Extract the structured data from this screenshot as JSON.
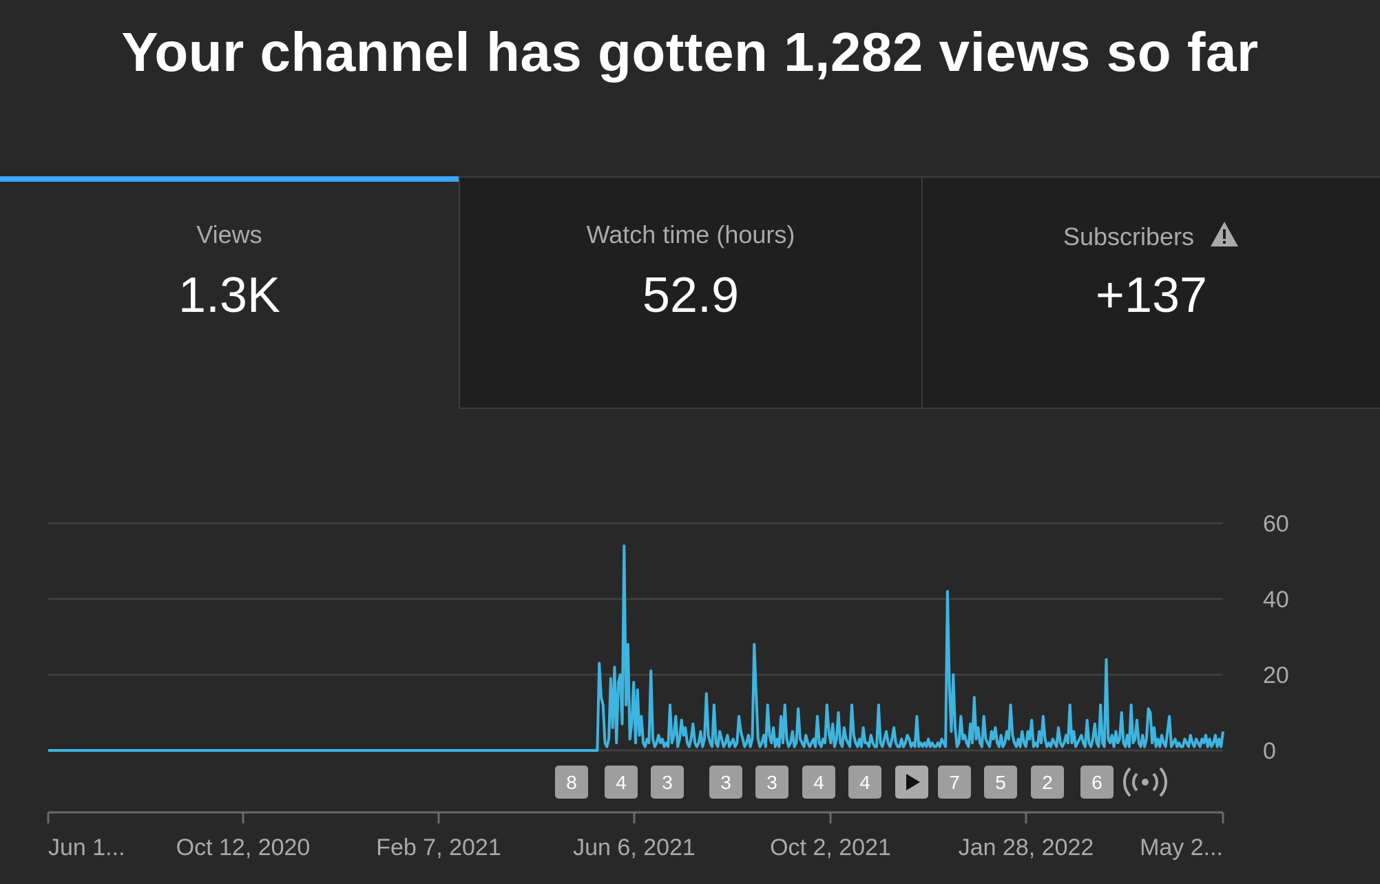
{
  "headline": "Your channel has gotten 1,282 views so far",
  "tabs": [
    {
      "label": "Views",
      "value": "1.3K",
      "active": true
    },
    {
      "label": "Watch time (hours)",
      "value": "52.9",
      "active": false
    },
    {
      "label": "Subscribers",
      "value": "+137",
      "active": false,
      "icon": "warning-icon"
    }
  ],
  "colors": {
    "accent": "#3ea6ff",
    "line": "#3eb4e0",
    "background": "#282828"
  },
  "chart_data": {
    "type": "line",
    "ylim": [
      0,
      60
    ],
    "yticks": [
      "60",
      "40",
      "20",
      "0"
    ],
    "x_tick_labels": [
      "Jun 1...",
      "Oct 12, 2020",
      "Feb 7, 2021",
      "Jun 6, 2021",
      "Oct 2, 2021",
      "Jan 28, 2022",
      "May 2..."
    ],
    "x_range": [
      "2020-06-16",
      "2022-05-27"
    ],
    "grid": true,
    "series": [
      {
        "values": [
          0,
          0,
          0,
          0,
          0,
          0,
          0,
          0,
          0,
          0,
          0,
          0,
          0,
          0,
          0,
          0,
          0,
          0,
          0,
          0,
          0,
          0,
          0,
          0,
          0,
          0,
          0,
          0,
          0,
          0,
          0,
          0,
          0,
          0,
          0,
          0,
          0,
          0,
          0,
          0,
          0,
          0,
          0,
          0,
          0,
          0,
          0,
          0,
          0,
          0,
          0,
          0,
          0,
          0,
          0,
          0,
          0,
          0,
          0,
          0,
          0,
          0,
          0,
          0,
          0,
          0,
          0,
          0,
          0,
          0,
          0,
          0,
          0,
          0,
          0,
          0,
          0,
          0,
          0,
          0,
          0,
          0,
          0,
          0,
          0,
          0,
          0,
          0,
          0,
          0,
          0,
          0,
          0,
          0,
          0,
          0,
          0,
          0,
          0,
          0,
          0,
          0,
          0,
          0,
          0,
          0,
          0,
          0,
          0,
          0,
          0,
          0,
          0,
          0,
          0,
          0,
          0,
          0,
          0,
          0,
          0,
          0,
          0,
          0,
          0,
          0,
          0,
          0,
          0,
          0,
          0,
          0,
          0,
          0,
          0,
          0,
          0,
          0,
          0,
          0,
          0,
          0,
          0,
          0,
          0,
          0,
          0,
          0,
          0,
          0,
          0,
          0,
          0,
          0,
          0,
          0,
          0,
          0,
          0,
          0,
          0,
          0,
          0,
          0,
          0,
          0,
          0,
          0,
          0,
          0,
          0,
          0,
          0,
          0,
          0,
          0,
          0,
          0,
          0,
          0,
          0,
          0,
          0,
          0,
          0,
          0,
          0,
          0,
          0,
          0,
          0,
          0,
          0,
          0,
          0,
          0,
          0,
          0,
          0,
          0,
          0,
          0,
          0,
          0,
          0,
          0,
          0,
          0,
          0,
          0,
          0,
          0,
          0,
          0,
          0,
          0,
          0,
          0,
          0,
          0,
          0,
          0,
          0,
          0,
          0,
          0,
          0,
          0,
          0,
          0,
          0,
          0,
          0,
          0,
          0,
          0,
          0,
          0,
          0,
          0,
          0,
          0,
          0,
          0,
          0,
          0,
          0,
          0,
          0,
          0,
          0,
          0,
          0,
          0,
          0,
          0,
          0,
          0,
          0,
          0,
          0,
          0,
          0,
          0,
          0,
          0,
          0,
          0,
          0,
          0,
          0,
          0,
          0,
          0,
          0,
          0,
          0,
          0,
          0,
          0,
          0,
          0,
          0,
          0,
          0,
          0,
          0,
          0,
          23,
          14,
          12,
          2,
          1,
          3,
          19,
          6,
          22,
          2,
          18,
          20,
          7,
          54,
          12,
          28,
          3,
          7,
          18,
          2,
          16,
          4,
          9,
          2,
          1,
          3,
          2,
          21,
          3,
          1,
          2,
          4,
          2,
          3,
          1,
          2,
          1,
          12,
          2,
          4,
          9,
          1,
          3,
          8,
          4,
          6,
          2,
          1,
          3,
          7,
          2,
          1,
          2,
          5,
          1,
          3,
          15,
          4,
          2,
          1,
          12,
          2,
          1,
          5,
          3,
          1,
          2,
          4,
          1,
          2,
          3,
          1,
          2,
          9,
          5,
          3,
          1,
          2,
          4,
          1,
          3,
          28,
          15,
          3,
          1,
          2,
          4,
          1,
          12,
          4,
          2,
          6,
          1,
          3,
          1,
          9,
          2,
          12,
          3,
          1,
          2,
          5,
          1,
          2,
          11,
          3,
          2,
          1,
          4,
          2,
          1,
          2,
          3,
          1,
          9,
          2,
          1,
          3,
          2,
          12,
          5,
          2,
          7,
          1,
          3,
          10,
          2,
          1,
          6,
          3,
          2,
          1,
          12,
          4,
          2,
          1,
          3,
          1,
          6,
          2,
          2,
          1,
          4,
          2,
          1,
          1,
          12,
          2,
          1,
          3,
          5,
          2,
          1,
          3,
          6,
          2,
          1,
          1,
          3,
          1,
          2,
          4,
          3,
          1,
          2,
          1,
          9,
          1,
          2,
          1,
          2,
          1,
          3,
          1,
          2,
          1,
          1,
          2,
          1,
          3,
          2,
          1,
          42,
          17,
          5,
          20,
          6,
          1,
          2,
          9,
          3,
          4,
          2,
          1,
          7,
          2,
          14,
          3,
          6,
          2,
          1,
          9,
          3,
          2,
          1,
          5,
          3,
          6,
          2,
          1,
          4,
          1,
          2,
          5,
          3,
          12,
          4,
          2,
          1,
          3,
          1,
          5,
          2,
          1,
          5,
          3,
          8,
          1,
          2,
          1,
          5,
          2,
          9,
          3,
          1,
          2,
          1,
          3,
          2,
          1,
          6,
          2,
          1,
          2,
          4,
          2,
          12,
          2,
          5,
          1,
          2,
          3,
          4,
          2,
          1,
          8,
          2,
          1,
          3,
          7,
          2,
          1,
          12,
          2,
          1,
          24,
          3,
          2,
          4,
          1,
          5,
          2,
          3,
          10,
          2,
          1,
          4,
          1,
          12,
          2,
          3,
          8,
          2,
          1,
          4,
          1,
          3,
          11,
          10,
          2,
          6,
          1,
          3,
          1,
          4,
          2,
          1,
          5,
          9,
          1,
          2,
          3,
          1,
          2,
          1,
          1,
          3,
          2,
          1,
          4,
          2,
          1,
          3,
          2,
          1,
          3,
          2,
          4,
          1,
          3,
          1,
          2,
          4,
          1,
          3,
          1,
          5
        ]
      }
    ],
    "markers": [
      "8",
      "4",
      "3",
      "3",
      "3",
      "4",
      "4",
      "",
      "7",
      "5",
      "2",
      "6",
      ""
    ]
  }
}
